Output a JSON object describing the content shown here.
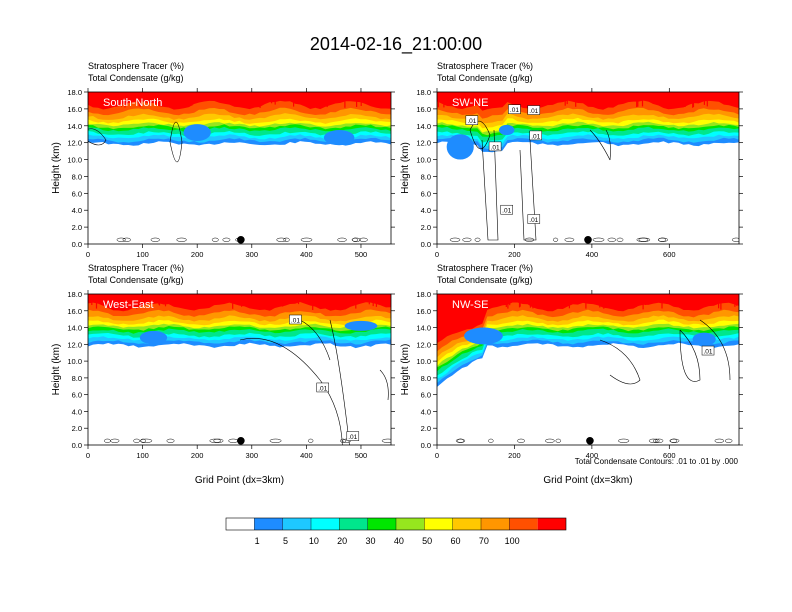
{
  "figure": {
    "title": "2014-02-16_21:00:00",
    "note": "Total Condensate Contours: .01 to .01 by .000"
  },
  "chart_data": [
    {
      "type": "heatmap",
      "panel": "South-North",
      "title_line1": "Stratosphere Tracer   (%)",
      "title_line2": "Total Condensate   (g/kg)",
      "label": "South-North",
      "xlabel": "",
      "ylabel": "Height (km)",
      "xlim": [
        0,
        555
      ],
      "ylim": [
        0,
        18
      ],
      "xticks": [
        0,
        100,
        200,
        300,
        400,
        500
      ],
      "yticks": [
        "0.0",
        "2.0",
        "4.0",
        "6.0",
        "8.0",
        "10.0",
        "12.0",
        "14.0",
        "16.0",
        "18.0"
      ],
      "marker_x": 280,
      "contour_labels": []
    },
    {
      "type": "heatmap",
      "panel": "SW-NE",
      "title_line1": "Stratosphere Tracer   (%)",
      "title_line2": "Total Condensate   (g/kg)",
      "label": "SW-NE",
      "xlabel": "",
      "ylabel": "Height (km)",
      "xlim": [
        0,
        780
      ],
      "ylim": [
        0,
        18
      ],
      "xticks": [
        0,
        200,
        400,
        600
      ],
      "yticks": [
        "0.0",
        "2.0",
        "4.0",
        "6.0",
        "8.0",
        "10.0",
        "12.0",
        "14.0",
        "16.0",
        "18.0"
      ],
      "marker_x": 390,
      "contour_labels": [
        {
          "text": ".01",
          "x": 90,
          "y": 14.6
        },
        {
          "text": ".01",
          "x": 200,
          "y": 15.9
        },
        {
          "text": ".01",
          "x": 250,
          "y": 15.8
        },
        {
          "text": ".01",
          "x": 150,
          "y": 11.5
        },
        {
          "text": ".01",
          "x": 255,
          "y": 12.8
        },
        {
          "text": ".01",
          "x": 180,
          "y": 4.0
        },
        {
          "text": ".01",
          "x": 250,
          "y": 2.9
        }
      ]
    },
    {
      "type": "heatmap",
      "panel": "West-East",
      "title_line1": "Stratosphere Tracer   (%)",
      "title_line2": "Total Condensate   (g/kg)",
      "label": "West-East",
      "xlabel": "Grid Point (dx=3km)",
      "ylabel": "Height (km)",
      "xlim": [
        0,
        555
      ],
      "ylim": [
        0,
        18
      ],
      "xticks": [
        0,
        100,
        200,
        300,
        400,
        500
      ],
      "yticks": [
        "0.0",
        "2.0",
        "4.0",
        "6.0",
        "8.0",
        "10.0",
        "12.0",
        "14.0",
        "16.0",
        "18.0"
      ],
      "marker_x": 280,
      "contour_labels": [
        {
          "text": ".01",
          "x": 380,
          "y": 14.9
        },
        {
          "text": ".01",
          "x": 430,
          "y": 6.8
        },
        {
          "text": ".01",
          "x": 485,
          "y": 1.0
        }
      ]
    },
    {
      "type": "heatmap",
      "panel": "NW-SE",
      "title_line1": "Stratosphere Tracer   (%)",
      "title_line2": "Total Condensate   (g/kg)",
      "label": "NW-SE",
      "xlabel": "Grid Point (dx=3km)",
      "ylabel": "Height (km)",
      "xlim": [
        0,
        780
      ],
      "ylim": [
        0,
        18
      ],
      "xticks": [
        0,
        200,
        400,
        600
      ],
      "yticks": [
        "0.0",
        "2.0",
        "4.0",
        "6.0",
        "8.0",
        "10.0",
        "12.0",
        "14.0",
        "16.0",
        "18.0"
      ],
      "marker_x": 395,
      "contour_labels": [
        {
          "text": ".01",
          "x": 700,
          "y": 11.2
        }
      ]
    }
  ],
  "colorbar": {
    "levels": [
      "1",
      "5",
      "10",
      "20",
      "30",
      "40",
      "50",
      "60",
      "70",
      "100"
    ],
    "colors": [
      "#ffffff",
      "#1e8cff",
      "#1ec8ff",
      "#00ffff",
      "#00e68c",
      "#00e600",
      "#96e61e",
      "#ffff00",
      "#ffc800",
      "#ff9600",
      "#ff5000",
      "#ff0000"
    ]
  }
}
